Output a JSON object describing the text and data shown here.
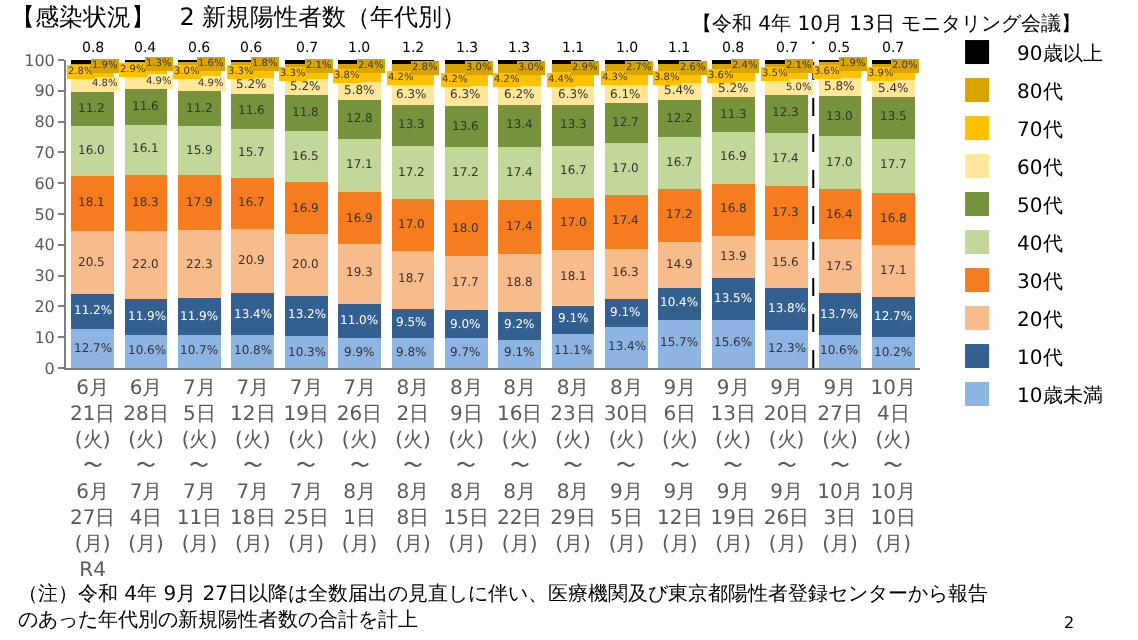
{
  "chart_data": {
    "type": "bar",
    "stacked": true,
    "title": "【感染状況】　2 新規陽性者数（年代別）",
    "annotations": [
      "【令和 4年 10月 13日 モニタリング会議】",
      "（注）令和 4年 9月 27日以降は全数届出の見直しに伴い、医療機関及び東京都陽性者登録センターから報告のあった年代別の新規陽性者数の合計を計上",
      "2"
    ],
    "categories": [
      "6月\n21日\n(火)\n〜\n6月\n27日\n(月)\nR4",
      "6月\n28日\n(火)\n〜\n7月\n4日\n(月)",
      "7月\n5日\n(火)\n〜\n7月\n11日\n(月)",
      "7月\n12日\n(火)\n〜\n7月\n18日\n(月)",
      "7月\n19日\n(火)\n〜\n7月\n25日\n(月)",
      "7月\n26日\n(火)\n〜\n8月\n1日\n(月)",
      "8月\n2日\n(火)\n〜\n8月\n8日\n(月)",
      "8月\n9日\n(火)\n〜\n8月\n15日\n(月)",
      "8月\n16日\n(火)\n〜\n8月\n22日\n(月)",
      "8月\n23日\n(火)\n〜\n8月\n29日\n(月)",
      "8月\n30日\n(火)\n〜\n9月\n5日\n(月)",
      "9月\n6日\n(火)\n〜\n9月\n12日\n(月)",
      "9月\n13日\n(火)\n〜\n9月\n19日\n(月)",
      "9月\n20日\n(火)\n〜\n9月\n26日\n(月)",
      "9月\n27日\n(火)\n〜\n10月\n3日\n(月)",
      "10月\n4日\n(火)\n〜\n10月\n10日\n(月)"
    ],
    "ylim": [
      0,
      100
    ],
    "yticks": [
      0,
      10,
      20,
      30,
      40,
      50,
      60,
      70,
      80,
      90,
      100
    ],
    "grid": false,
    "legend": "right",
    "series": [
      {
        "name": "10歳未満",
        "color": "#8db4e2",
        "values": [
          12.7,
          10.6,
          10.7,
          10.8,
          10.3,
          9.9,
          9.8,
          9.7,
          9.1,
          11.1,
          13.4,
          15.7,
          15.6,
          12.3,
          10.6,
          10.2
        ],
        "value_labels": [
          "12.7%",
          "10.6%",
          "10.7%",
          "10.8%",
          "10.3%",
          "9.9%",
          "9.8%",
          "9.7%",
          "9.1%",
          "11.1%",
          "13.4%",
          "15.7%",
          "15.6%",
          "12.3%",
          "10.6%",
          "10.2%"
        ]
      },
      {
        "name": "10代",
        "color": "#335f91",
        "values": [
          11.2,
          11.9,
          11.9,
          13.4,
          13.2,
          11.0,
          9.5,
          9.0,
          9.2,
          9.1,
          9.1,
          10.4,
          13.5,
          13.8,
          13.7,
          12.7
        ],
        "value_labels": [
          "11.2%",
          "11.9%",
          "11.9%",
          "13.4%",
          "13.2%",
          "11.0%",
          "9.5%",
          "9.0%",
          "9.2%",
          "9.1%",
          "9.1%",
          "10.4%",
          "13.5%",
          "13.8%",
          "13.7%",
          "12.7%"
        ]
      },
      {
        "name": "20代",
        "color": "#f8bb8c",
        "values": [
          20.5,
          22.0,
          22.3,
          20.9,
          20.0,
          19.3,
          18.7,
          17.7,
          18.8,
          18.1,
          16.3,
          14.9,
          13.9,
          15.6,
          17.5,
          17.1
        ],
        "value_labels": [
          "20.5",
          "22.0",
          "22.3",
          "20.9",
          "20.0",
          "19.3",
          "18.7",
          "17.7",
          "18.8",
          "18.1",
          "16.3",
          "14.9",
          "13.9",
          "15.6",
          "17.5",
          "17.1"
        ]
      },
      {
        "name": "30代",
        "color": "#f57c1f",
        "values": [
          18.1,
          18.3,
          17.9,
          16.7,
          16.9,
          16.9,
          17.0,
          18.0,
          17.4,
          17.0,
          17.4,
          17.2,
          16.8,
          17.3,
          16.4,
          16.8
        ],
        "value_labels": [
          "18.1",
          "18.3",
          "17.9",
          "16.7",
          "16.9",
          "16.9",
          "17.0",
          "18.0",
          "17.4",
          "17.0",
          "17.4",
          "17.2",
          "16.8",
          "17.3",
          "16.4",
          "16.8"
        ]
      },
      {
        "name": "40代",
        "color": "#c4d79b",
        "values": [
          16.0,
          16.1,
          15.9,
          15.7,
          16.5,
          17.1,
          17.2,
          17.2,
          17.4,
          16.7,
          17.0,
          16.7,
          16.9,
          17.4,
          17.0,
          17.7
        ],
        "value_labels": [
          "16.0",
          "16.1",
          "15.9",
          "15.7",
          "16.5",
          "17.1",
          "17.2",
          "17.2",
          "17.4",
          "16.7",
          "17.0",
          "16.7",
          "16.9",
          "17.4",
          "17.0",
          "17.7"
        ]
      },
      {
        "name": "50代",
        "color": "#76923c",
        "values": [
          11.2,
          11.6,
          11.2,
          11.6,
          11.8,
          12.8,
          13.3,
          13.6,
          13.4,
          13.3,
          12.7,
          12.2,
          11.3,
          12.3,
          13.0,
          13.5
        ],
        "value_labels": [
          "11.2",
          "11.6",
          "11.2",
          "11.6",
          "11.8",
          "12.8",
          "13.3",
          "13.6",
          "13.4",
          "13.3",
          "12.7",
          "12.2",
          "11.3",
          "12.3",
          "13.0",
          "13.5"
        ]
      },
      {
        "name": "60代",
        "color": "#ffe699",
        "values": [
          4.8,
          4.9,
          4.9,
          5.2,
          5.2,
          5.8,
          6.3,
          6.3,
          6.2,
          6.3,
          6.1,
          5.4,
          5.2,
          5.0,
          5.8,
          5.4
        ],
        "value_labels": [
          "4.8%",
          "4.9%",
          "4.9%",
          "5.2%",
          "5.2%",
          "5.8%",
          "6.3%",
          "6.3%",
          "6.2%",
          "6.3%",
          "6.1%",
          "5.4%",
          "5.2%",
          "5.0%",
          "5.8%",
          "5.4%"
        ]
      },
      {
        "name": "70代",
        "color": "#ffc000",
        "values": [
          2.8,
          2.9,
          3.0,
          3.3,
          3.3,
          3.8,
          4.2,
          4.2,
          4.2,
          4.4,
          4.3,
          3.8,
          3.6,
          3.5,
          3.6,
          3.9
        ],
        "value_labels": [
          "2.8%",
          "2.9%",
          "3.0%",
          "3.3%",
          "3.3%",
          "3.8%",
          "4.2%",
          "4.2%",
          "4.2%",
          "4.4%",
          "4.3%",
          "3.8%",
          "3.6%",
          "3.5%",
          "3.6%",
          "3.9%"
        ]
      },
      {
        "name": "80代",
        "color": "#d9a400",
        "values": [
          1.9,
          1.3,
          1.6,
          1.8,
          2.1,
          2.4,
          2.8,
          3.0,
          3.0,
          2.9,
          2.7,
          2.6,
          2.4,
          2.1,
          1.9,
          2.0
        ],
        "value_labels": [
          "1.9%",
          "1.3%",
          "1.6%",
          "1.8%",
          "2.1%",
          "2.4%",
          "2.8%",
          "3.0%",
          "3.0%",
          "2.9%",
          "2.7%",
          "2.6%",
          "2.4%",
          "2.1%",
          "1.9%",
          "2.0%"
        ]
      },
      {
        "name": "90歳以上",
        "color": "#000000",
        "values": [
          0.8,
          0.4,
          0.6,
          0.6,
          0.7,
          1.0,
          1.2,
          1.3,
          1.3,
          1.1,
          1.0,
          1.1,
          0.8,
          0.7,
          0.5,
          0.7
        ],
        "value_labels": [
          "0.8",
          "0.4",
          "0.6",
          "0.6",
          "0.7",
          "1.0",
          "1.2",
          "1.3",
          "1.3",
          "1.1",
          "1.0",
          "1.1",
          "0.8",
          "0.7",
          "0.5",
          "0.7"
        ]
      }
    ]
  }
}
